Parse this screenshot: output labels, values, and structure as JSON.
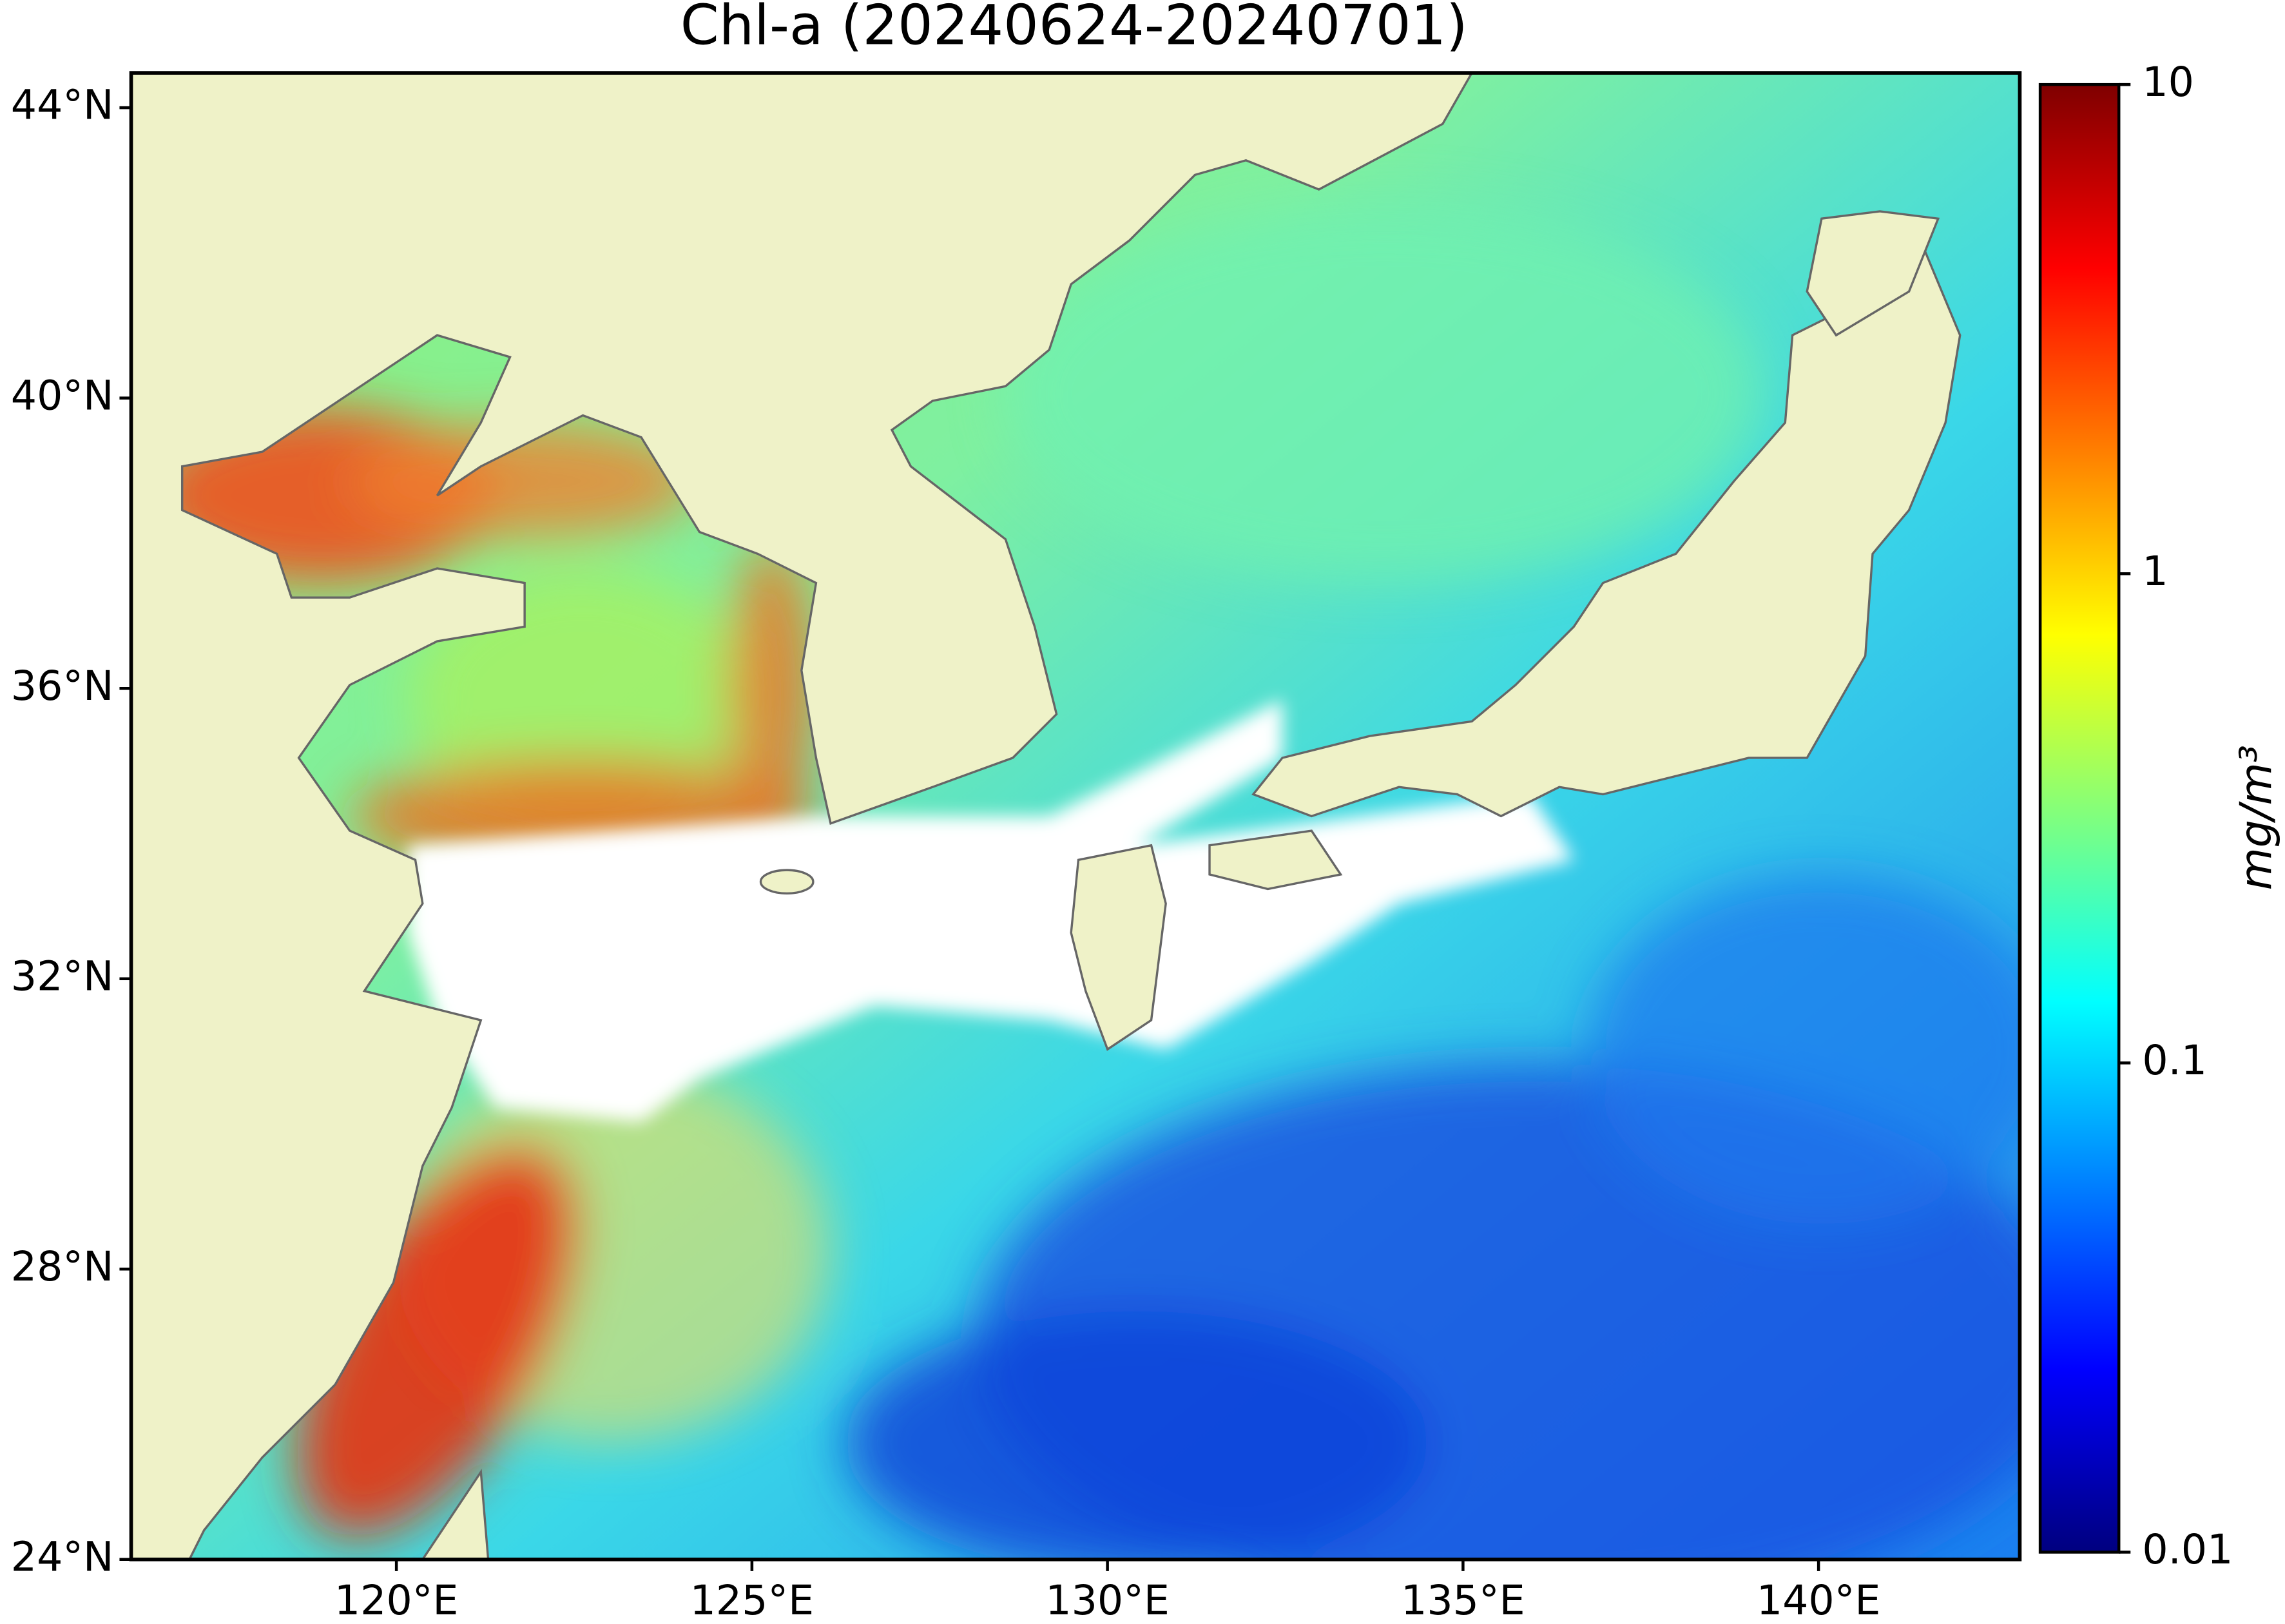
{
  "title": "Chl-a (20240624-20240701)",
  "map": {
    "xlim": [
      116.27,
      142.83
    ],
    "ylim": [
      24,
      44.48
    ],
    "xticks": [
      {
        "value": 120,
        "label": "120°E"
      },
      {
        "value": 125,
        "label": "125°E"
      },
      {
        "value": 130,
        "label": "130°E"
      },
      {
        "value": 135,
        "label": "135°E"
      },
      {
        "value": 140,
        "label": "140°E"
      }
    ],
    "yticks": [
      {
        "value": 24,
        "label": "24°N"
      },
      {
        "value": 28,
        "label": "28°N"
      },
      {
        "value": 32,
        "label": "32°N"
      },
      {
        "value": 36,
        "label": "36°N"
      },
      {
        "value": 40,
        "label": "40°N"
      },
      {
        "value": 44,
        "label": "44°N"
      }
    ]
  },
  "colorbar": {
    "label": "mg/m³",
    "scale": "log",
    "lim": [
      0.01,
      10
    ],
    "ticks": [
      {
        "value": 0.01,
        "label": "0.01"
      },
      {
        "value": 0.1,
        "label": "0.1"
      },
      1,
      10
    ],
    "colormap": [
      "#00007f",
      "#0000ff",
      "#007fff",
      "#00ffff",
      "#7fff7f",
      "#ffff00",
      "#ff7f00",
      "#ff0000",
      "#7f0000"
    ]
  }
}
